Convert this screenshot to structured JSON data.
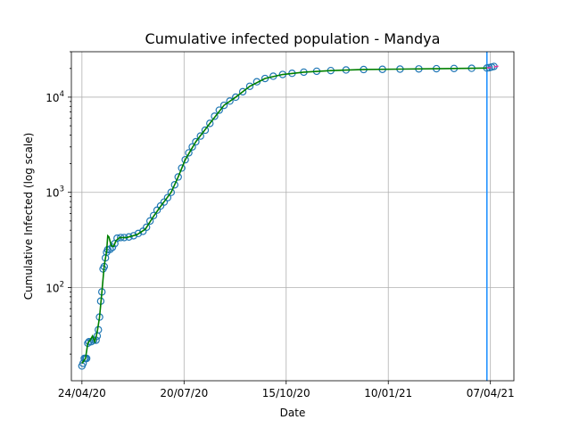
{
  "chart_data": {
    "type": "line",
    "title": "Cumulative infected population - Mandya",
    "xlabel": "Date",
    "ylabel": "Cumulative Infected (log scale)",
    "x_tick_labels": [
      "24/04/20",
      "20/07/20",
      "15/10/20",
      "10/01/21",
      "07/04/21"
    ],
    "x_tick_dates": [
      "2020-04-24",
      "2020-07-20",
      "2020-10-15",
      "2021-01-10",
      "2021-04-07"
    ],
    "y_tick_labels": [
      {
        "base": "10",
        "exp": "2",
        "value": 100
      },
      {
        "base": "10",
        "exp": "3",
        "value": 1000
      },
      {
        "base": "10",
        "exp": "4",
        "value": 10000
      }
    ],
    "y_scale": "log",
    "xlim": [
      "2020-04-15",
      "2021-04-27"
    ],
    "ylim": [
      10.5,
      30000
    ],
    "grid": true,
    "vline_date": "2021-04-04",
    "series": [
      {
        "style": "observed-circles",
        "color": "#1f77b4",
        "points": [
          [
            "2020-04-24",
            15
          ],
          [
            "2020-04-25",
            16
          ],
          [
            "2020-04-26",
            18
          ],
          [
            "2020-04-27",
            18
          ],
          [
            "2020-04-28",
            18
          ],
          [
            "2020-04-29",
            26
          ],
          [
            "2020-04-30",
            27
          ],
          [
            "2020-05-02",
            27
          ],
          [
            "2020-05-04",
            28
          ],
          [
            "2020-05-06",
            28
          ],
          [
            "2020-05-07",
            31
          ],
          [
            "2020-05-08",
            36
          ],
          [
            "2020-05-09",
            49
          ],
          [
            "2020-05-10",
            72
          ],
          [
            "2020-05-11",
            90
          ],
          [
            "2020-05-12",
            157
          ],
          [
            "2020-05-13",
            166
          ],
          [
            "2020-05-14",
            205
          ],
          [
            "2020-05-15",
            235
          ],
          [
            "2020-05-16",
            250
          ],
          [
            "2020-05-18",
            252
          ],
          [
            "2020-05-20",
            265
          ],
          [
            "2020-05-22",
            290
          ],
          [
            "2020-05-24",
            330
          ],
          [
            "2020-05-27",
            335
          ],
          [
            "2020-05-30",
            335
          ],
          [
            "2020-06-03",
            340
          ],
          [
            "2020-06-07",
            350
          ],
          [
            "2020-06-11",
            370
          ],
          [
            "2020-06-15",
            390
          ],
          [
            "2020-06-18",
            430
          ],
          [
            "2020-06-21",
            500
          ],
          [
            "2020-06-24",
            570
          ],
          [
            "2020-06-27",
            650
          ],
          [
            "2020-06-30",
            720
          ],
          [
            "2020-07-03",
            790
          ],
          [
            "2020-07-06",
            880
          ],
          [
            "2020-07-09",
            1000
          ],
          [
            "2020-07-12",
            1200
          ],
          [
            "2020-07-15",
            1450
          ],
          [
            "2020-07-18",
            1800
          ],
          [
            "2020-07-21",
            2200
          ],
          [
            "2020-07-24",
            2600
          ],
          [
            "2020-07-27",
            3000
          ],
          [
            "2020-07-30",
            3400
          ],
          [
            "2020-08-03",
            3900
          ],
          [
            "2020-08-07",
            4500
          ],
          [
            "2020-08-11",
            5300
          ],
          [
            "2020-08-15",
            6300
          ],
          [
            "2020-08-19",
            7300
          ],
          [
            "2020-08-23",
            8200
          ],
          [
            "2020-08-28",
            9100
          ],
          [
            "2020-09-02",
            10000
          ],
          [
            "2020-09-08",
            11400
          ],
          [
            "2020-09-14",
            13000
          ],
          [
            "2020-09-20",
            14500
          ],
          [
            "2020-09-27",
            15700
          ],
          [
            "2020-10-04",
            16600
          ],
          [
            "2020-10-12",
            17300
          ],
          [
            "2020-10-20",
            17800
          ],
          [
            "2020-10-30",
            18300
          ],
          [
            "2020-11-10",
            18700
          ],
          [
            "2020-11-22",
            19000
          ],
          [
            "2020-12-05",
            19300
          ],
          [
            "2020-12-20",
            19500
          ],
          [
            "2021-01-05",
            19600
          ],
          [
            "2021-01-20",
            19700
          ],
          [
            "2021-02-05",
            19800
          ],
          [
            "2021-02-20",
            19900
          ],
          [
            "2021-03-07",
            20000
          ],
          [
            "2021-03-22",
            20100
          ],
          [
            "2021-04-04",
            20200
          ],
          [
            "2021-04-06",
            20400
          ],
          [
            "2021-04-08",
            20700
          ],
          [
            "2021-04-10",
            21000
          ]
        ]
      },
      {
        "style": "fit-line",
        "color": "#008000",
        "points": [
          [
            "2020-04-24",
            16
          ],
          [
            "2020-04-27",
            18
          ],
          [
            "2020-04-29",
            26
          ],
          [
            "2020-05-01",
            28
          ],
          [
            "2020-05-03",
            31
          ],
          [
            "2020-05-05",
            27
          ],
          [
            "2020-05-07",
            34
          ],
          [
            "2020-05-09",
            49
          ],
          [
            "2020-05-11",
            90
          ],
          [
            "2020-05-13",
            170
          ],
          [
            "2020-05-15",
            240
          ],
          [
            "2020-05-16",
            350
          ],
          [
            "2020-05-17",
            340
          ],
          [
            "2020-05-19",
            275
          ],
          [
            "2020-05-21",
            270
          ],
          [
            "2020-05-23",
            310
          ],
          [
            "2020-05-26",
            335
          ],
          [
            "2020-06-01",
            335
          ],
          [
            "2020-06-10",
            360
          ],
          [
            "2020-06-17",
            410
          ],
          [
            "2020-06-24",
            560
          ],
          [
            "2020-07-01",
            740
          ],
          [
            "2020-07-09",
            1000
          ],
          [
            "2020-07-15",
            1450
          ],
          [
            "2020-07-21",
            2200
          ],
          [
            "2020-07-30",
            3400
          ],
          [
            "2020-08-11",
            5300
          ],
          [
            "2020-08-23",
            8200
          ],
          [
            "2020-09-02",
            10000
          ],
          [
            "2020-09-14",
            13000
          ],
          [
            "2020-09-27",
            15700
          ],
          [
            "2020-10-12",
            17300
          ],
          [
            "2020-10-30",
            18300
          ],
          [
            "2020-11-22",
            19000
          ],
          [
            "2020-12-20",
            19500
          ],
          [
            "2021-01-20",
            19700
          ],
          [
            "2021-02-20",
            19900
          ],
          [
            "2021-03-22",
            20100
          ],
          [
            "2021-04-04",
            20200
          ]
        ]
      },
      {
        "style": "forecast-dashed",
        "color": "#e6399b",
        "points": [
          [
            "2021-04-04",
            20250
          ],
          [
            "2021-04-08",
            20600
          ],
          [
            "2021-04-12",
            21000
          ],
          [
            "2021-04-16",
            21300
          ]
        ]
      }
    ]
  }
}
